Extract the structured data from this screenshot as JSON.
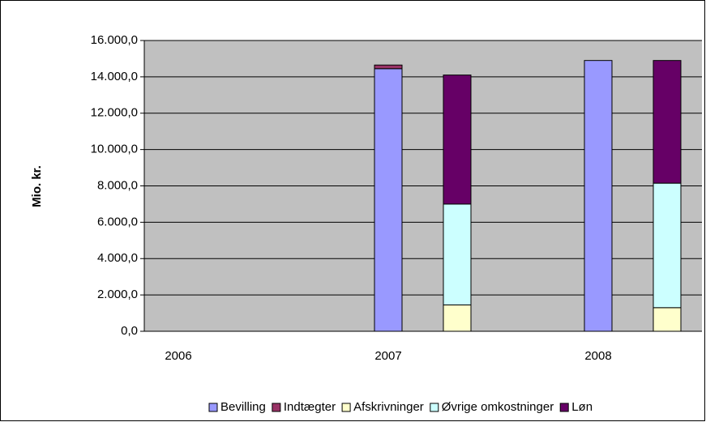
{
  "chart_data": {
    "type": "stacked-bar",
    "y_label": "Mio. kr.",
    "categories": [
      "2006",
      "2007",
      "2008"
    ],
    "series": [
      {
        "name": "Bevilling",
        "color": "#9999ff",
        "stack": "a",
        "values": [
          null,
          14450,
          14900
        ]
      },
      {
        "name": "Indtægter",
        "color": "#993366",
        "stack": "a",
        "values": [
          null,
          200,
          0
        ]
      },
      {
        "name": "Afskrivninger",
        "color": "#ffffcc",
        "stack": "b",
        "values": [
          null,
          1450,
          1300
        ]
      },
      {
        "name": "Øvrige omkostninger",
        "color": "#ccffff",
        "stack": "b",
        "values": [
          null,
          5550,
          6850
        ]
      },
      {
        "name": "Løn",
        "color": "#660066",
        "stack": "b",
        "values": [
          null,
          7100,
          6750
        ]
      }
    ],
    "ylim": [
      0,
      16000
    ],
    "yticks": [
      {
        "value": 0,
        "label": "0,0"
      },
      {
        "value": 2000,
        "label": "2.000,0"
      },
      {
        "value": 4000,
        "label": "4.000,0"
      },
      {
        "value": 6000,
        "label": "6.000,0"
      },
      {
        "value": 8000,
        "label": "8.000,0"
      },
      {
        "value": 10000,
        "label": "10.000,0"
      },
      {
        "value": 12000,
        "label": "12.000,0"
      },
      {
        "value": 14000,
        "label": "14.000,0"
      },
      {
        "value": 16000,
        "label": "16.000,0"
      }
    ],
    "grid": true,
    "legend": "bottom",
    "plot_background": "#c0c0c0"
  }
}
